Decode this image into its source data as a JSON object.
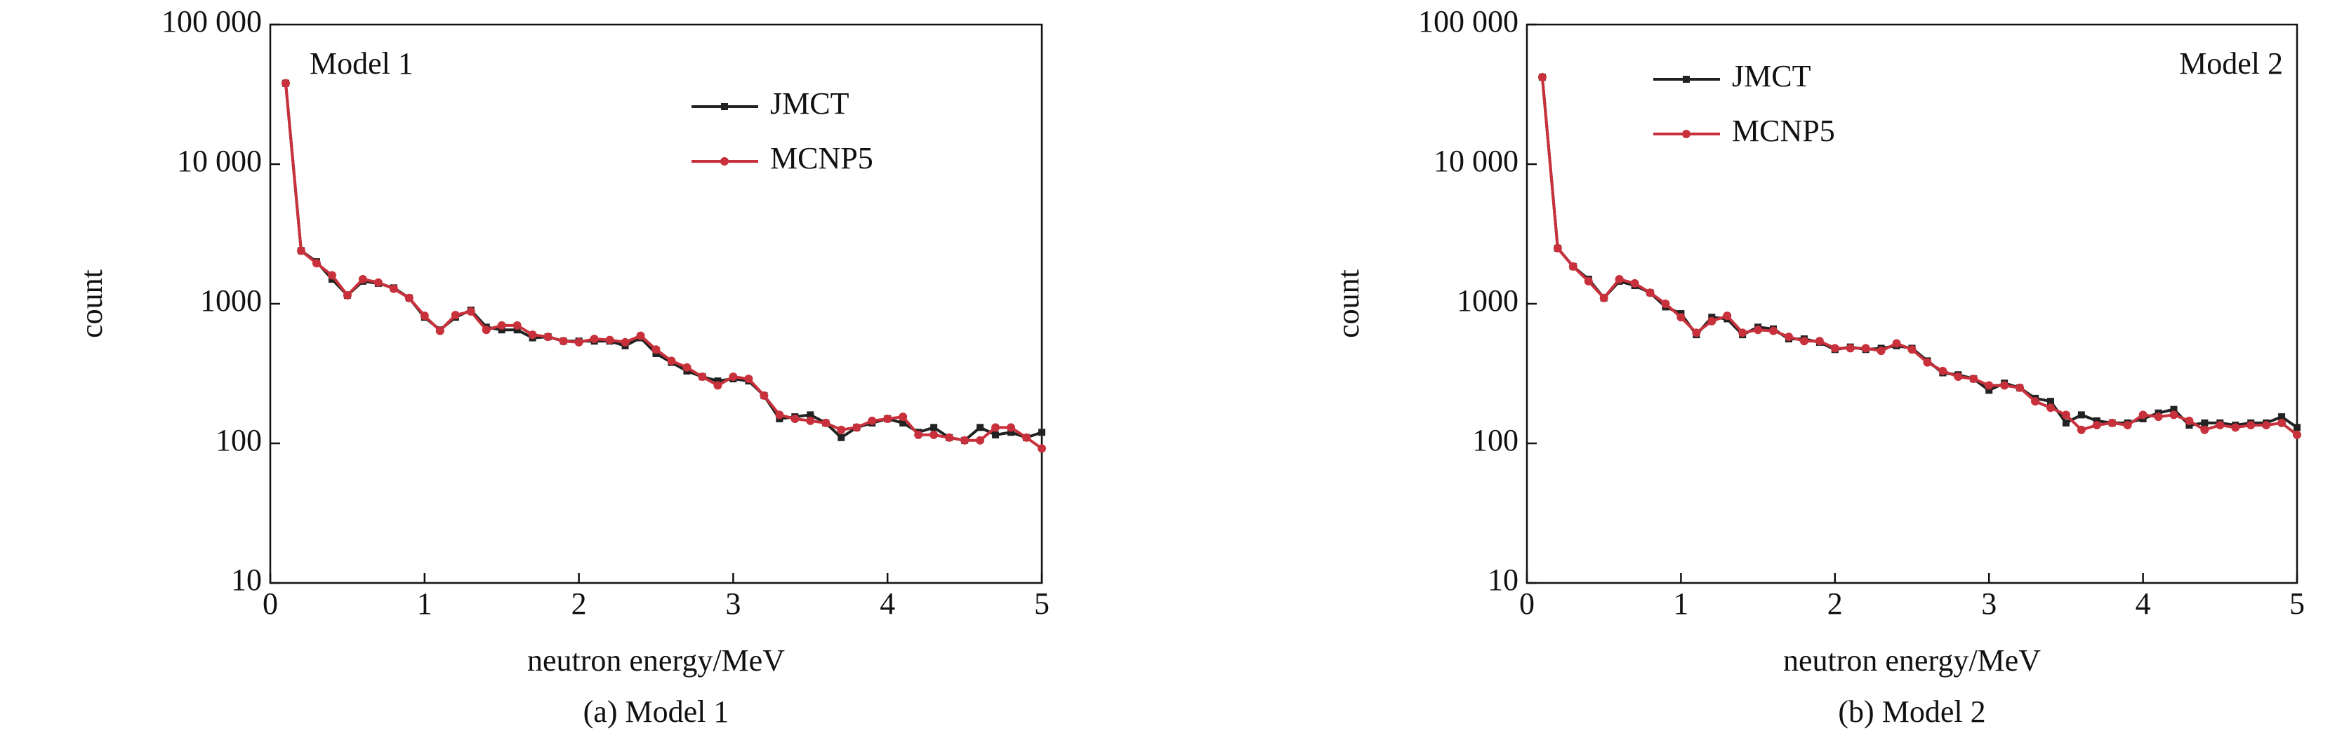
{
  "chart_data": [
    {
      "type": "line",
      "annotation": "Model 1",
      "caption": "(a) Model 1",
      "xlabel": "neutron energy/MeV",
      "ylabel": "count",
      "yscale": "log",
      "legend": "upper center",
      "xlim": [
        0,
        5
      ],
      "xticks": [
        0,
        1,
        2,
        3,
        4,
        5
      ],
      "ylim": [
        10,
        100000
      ],
      "yticks": [
        10,
        100,
        1000,
        {
          "value": 10000,
          "label": "10 000"
        },
        {
          "value": 100000,
          "label": "100 000"
        }
      ],
      "x": [
        0.1,
        0.2,
        0.3,
        0.4,
        0.5,
        0.6,
        0.7,
        0.8,
        0.9,
        1.0,
        1.1,
        1.2,
        1.3,
        1.4,
        1.5,
        1.6,
        1.7,
        1.8,
        1.9,
        2.0,
        2.1,
        2.2,
        2.3,
        2.4,
        2.5,
        2.6,
        2.7,
        2.8,
        2.9,
        3.0,
        3.1,
        3.2,
        3.3,
        3.4,
        3.5,
        3.6,
        3.7,
        3.8,
        3.9,
        4.0,
        4.1,
        4.2,
        4.3,
        4.4,
        4.5,
        4.6,
        4.7,
        4.8,
        4.9,
        5.0
      ],
      "series": [
        {
          "name": "JMCT",
          "color": "#222222",
          "marker": "square",
          "values": [
            38000,
            2400,
            2000,
            1500,
            1150,
            1450,
            1400,
            1300,
            1100,
            800,
            650,
            800,
            900,
            680,
            650,
            650,
            570,
            580,
            540,
            540,
            540,
            540,
            500,
            570,
            440,
            380,
            330,
            300,
            280,
            290,
            280,
            220,
            150,
            155,
            160,
            140,
            110,
            130,
            140,
            150,
            140,
            120,
            130,
            110,
            105,
            130,
            115,
            120,
            110,
            120
          ]
        },
        {
          "name": "MCNP5",
          "color": "#c8313b",
          "marker": "circle",
          "values": [
            38000,
            2400,
            1950,
            1600,
            1150,
            1500,
            1420,
            1280,
            1100,
            820,
            640,
            830,
            880,
            650,
            700,
            700,
            600,
            580,
            540,
            530,
            560,
            550,
            530,
            590,
            470,
            390,
            350,
            300,
            260,
            300,
            290,
            220,
            160,
            150,
            145,
            140,
            125,
            130,
            145,
            150,
            155,
            115,
            115,
            110,
            105,
            105,
            130,
            130,
            110,
            92
          ]
        }
      ]
    },
    {
      "type": "line",
      "annotation": "Model 2",
      "caption": "(b) Model 2",
      "xlabel": "neutron energy/MeV",
      "ylabel": "count",
      "yscale": "log",
      "legend": "upper left",
      "xlim": [
        0,
        5
      ],
      "xticks": [
        0,
        1,
        2,
        3,
        4,
        5
      ],
      "ylim": [
        10,
        100000
      ],
      "yticks": [
        10,
        100,
        1000,
        {
          "value": 10000,
          "label": "10 000"
        },
        {
          "value": 100000,
          "label": "100 000"
        }
      ],
      "x": [
        0.1,
        0.2,
        0.3,
        0.4,
        0.5,
        0.6,
        0.7,
        0.8,
        0.9,
        1.0,
        1.1,
        1.2,
        1.3,
        1.4,
        1.5,
        1.6,
        1.7,
        1.8,
        1.9,
        2.0,
        2.1,
        2.2,
        2.3,
        2.4,
        2.5,
        2.6,
        2.7,
        2.8,
        2.9,
        3.0,
        3.1,
        3.2,
        3.3,
        3.4,
        3.5,
        3.6,
        3.7,
        3.8,
        3.9,
        4.0,
        4.1,
        4.2,
        4.3,
        4.4,
        4.5,
        4.6,
        4.7,
        4.8,
        4.9,
        5.0
      ],
      "series": [
        {
          "name": "JMCT",
          "color": "#222222",
          "marker": "square",
          "values": [
            42000,
            2500,
            1850,
            1500,
            1100,
            1450,
            1350,
            1200,
            950,
            850,
            600,
            800,
            780,
            600,
            680,
            660,
            560,
            560,
            530,
            470,
            490,
            470,
            480,
            500,
            480,
            390,
            320,
            310,
            290,
            240,
            270,
            250,
            210,
            200,
            140,
            160,
            145,
            140,
            140,
            150,
            165,
            175,
            135,
            140,
            140,
            135,
            140,
            140,
            155,
            130
          ]
        },
        {
          "name": "MCNP5",
          "color": "#c8313b",
          "marker": "circle",
          "values": [
            42000,
            2500,
            1850,
            1450,
            1100,
            1500,
            1400,
            1200,
            1000,
            800,
            620,
            750,
            820,
            620,
            650,
            640,
            580,
            540,
            540,
            480,
            480,
            480,
            460,
            520,
            470,
            380,
            330,
            300,
            290,
            260,
            260,
            250,
            200,
            180,
            160,
            125,
            135,
            140,
            135,
            160,
            155,
            160,
            145,
            125,
            135,
            130,
            135,
            135,
            140,
            115
          ]
        }
      ]
    }
  ]
}
